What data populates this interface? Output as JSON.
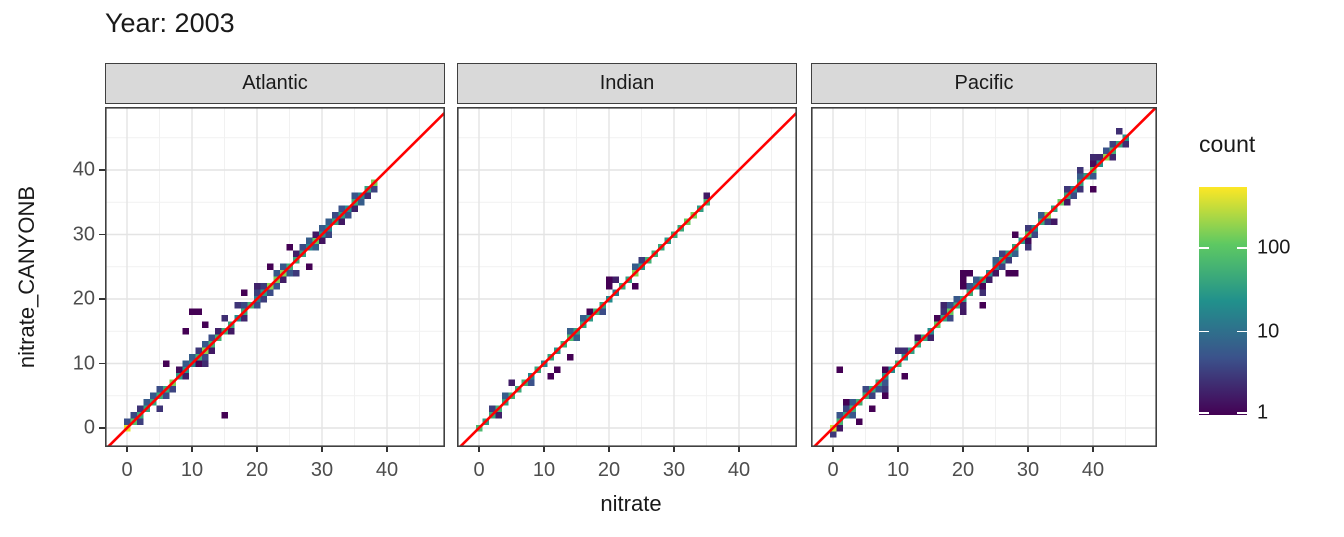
{
  "title": "Year: 2003",
  "axes": {
    "x_title": "nitrate",
    "y_title": "nitrate_CANYONB",
    "x_ticks": [
      0,
      10,
      20,
      30,
      40
    ],
    "y_ticks": [
      0,
      10,
      20,
      30,
      40
    ],
    "x_range": [
      -3.4,
      48.9
    ],
    "y_range": [
      -3.0,
      49.8
    ],
    "minor_ticks": [
      5,
      15,
      25,
      35,
      45
    ]
  },
  "legend": {
    "title": "count",
    "tick_values": [
      1,
      10,
      100
    ],
    "tick_labels": [
      "1",
      "10",
      "100"
    ],
    "scale": "log10",
    "max_count": 540
  },
  "colors": {
    "identity_line": "#ff0000",
    "strip_bg": "#d9d9d9",
    "panel_border": "#404040",
    "panel_bg": "#ffffff",
    "grid_major": "#e4e4e4",
    "grid_minor": "#f1f1f1",
    "tick_label": "#4d4d4d",
    "text": "#1a1a1a",
    "viridis": [
      "#440154",
      "#3b528b",
      "#21918c",
      "#5ec962",
      "#fde725"
    ]
  },
  "chart_data": {
    "type": "heatmap",
    "subtype": "geom_bin2d_faceted",
    "title": "Year: 2003",
    "xlabel": "nitrate",
    "ylabel": "nitrate_CANYONB",
    "legend_label": "count",
    "count_scale": "log10",
    "identity_line": "y = x, red",
    "relationship": "y approximately equals x (1:1) in all facets",
    "bin_size": 1,
    "facets": [
      {
        "label": "Atlantic",
        "diag_max": 38,
        "seed": 11,
        "band_density": 1.0,
        "hotspots": [
          [
            0,
            0,
            420
          ],
          [
            1,
            1,
            90
          ],
          [
            12,
            12,
            170
          ],
          [
            22,
            22,
            180
          ],
          [
            23,
            23,
            150
          ]
        ],
        "outliers": [
          [
            15,
            2
          ],
          [
            10,
            18
          ],
          [
            11,
            18
          ],
          [
            9,
            15
          ],
          [
            12,
            16
          ],
          [
            6,
            10
          ],
          [
            28,
            25
          ],
          [
            25,
            28
          ],
          [
            18,
            21
          ]
        ]
      },
      {
        "label": "Indian",
        "diag_max": 35,
        "seed": 7,
        "band_density": 0.45,
        "hotspots": [
          [
            0,
            0,
            70
          ],
          [
            32,
            32,
            120
          ],
          [
            33,
            33,
            150
          ]
        ],
        "outliers": [
          [
            12,
            9
          ],
          [
            20,
            22
          ],
          [
            17,
            18
          ],
          [
            24,
            22
          ]
        ]
      },
      {
        "label": "Pacific",
        "diag_max": 45,
        "seed": 23,
        "band_density": 0.85,
        "hotspots": [
          [
            0,
            0,
            330
          ],
          [
            1,
            1,
            60
          ],
          [
            33,
            33,
            200
          ]
        ],
        "outliers": [
          [
            1,
            9
          ],
          [
            20,
            22
          ],
          [
            20,
            23
          ],
          [
            20,
            24
          ],
          [
            21,
            24
          ],
          [
            27,
            24
          ],
          [
            28,
            24
          ],
          [
            23,
            19
          ],
          [
            4,
            1
          ],
          [
            6,
            3
          ],
          [
            8,
            5
          ],
          [
            2,
            4
          ]
        ]
      }
    ]
  }
}
